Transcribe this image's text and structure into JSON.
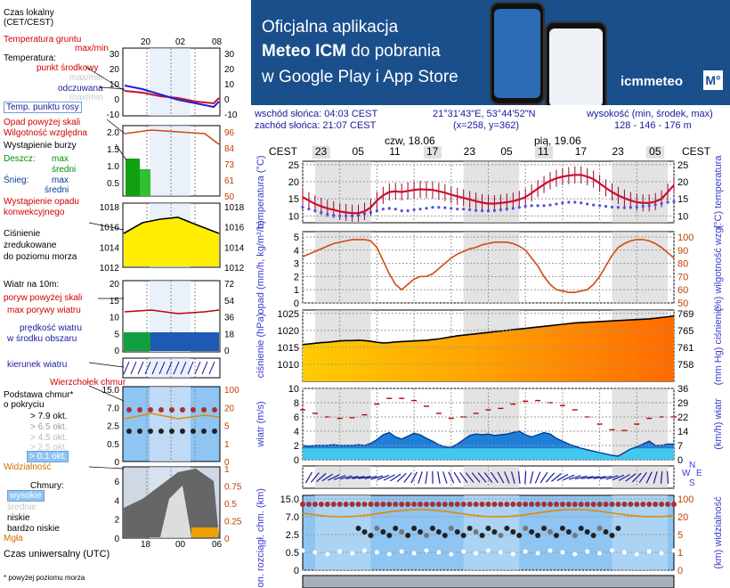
{
  "banner": {
    "line1": "Oficjalna aplikacja",
    "line2_bold": "Meteo ICM",
    "line2_rest": " do pobrania",
    "line3": "w Google Play i App Store",
    "logo": "icmmeteo",
    "logo_box": "M°"
  },
  "info": {
    "sunrise": "wschód słońca: 04:03 CEST",
    "sunset": "zachód słońca: 21:07 CEST",
    "coords": "21°31'43\"E, 53°44'52\"N",
    "grid": "(x=258, y=362)",
    "elev_label": "wysokość (min, środek, max)",
    "elev_values": "128 - 146 - 176 m"
  },
  "legend": {
    "time_local": "Czas lokalny",
    "time_local2": "(CET/CEST)",
    "time_ticks": [
      "20",
      "02",
      "08"
    ],
    "ground_temp": "Temperatura gruntu",
    "ground_temp_sub": "max/min",
    "temperature": "Temperatura:",
    "mid_point": "punkt środkowy",
    "max_min1": "max/min",
    "feels": "odczuwana",
    "max_min2": "max/min",
    "dew": "Temp. punktu rosy",
    "temp_ticks_left": [
      "30",
      "20",
      "10",
      "0",
      "-10"
    ],
    "temp_ticks_right": [
      "30",
      "20",
      "10",
      "0",
      "-10"
    ],
    "precip_above": "Opad powyżej skali",
    "humidity": "Wilgotność względna",
    "storm": "Wystąpienie burzy",
    "rain": "Deszcz:",
    "rain_max": "max",
    "rain_mid": "średni",
    "snow": "Śnieg:",
    "snow_max": "max",
    "snow_mid": "średni",
    "precip_occ": "Wystąpienie opadu",
    "precip_occ2": "konwekcyjnego",
    "precip_ticks": [
      "2.0",
      "1.5",
      "1.0",
      "0.5"
    ],
    "hum_ticks": [
      "96",
      "84",
      "73",
      "61",
      "50"
    ],
    "pressure1": "Ciśnienie",
    "pressure2": "zredukowane",
    "pressure3": "do poziomu morza",
    "press_ticks": [
      "1018",
      "1016",
      "1014",
      "1012"
    ],
    "wind_title": "Wiatr na 10m:",
    "gust_above": "poryw powyżej skali",
    "gust_max": "max porywy wiatru",
    "wind_mean": "prędkość wiatru",
    "wind_mean2": "w środku obszaru",
    "wind_ticks_left": [
      "20",
      "15",
      "10",
      "5",
      "0"
    ],
    "wind_ticks_right": [
      "72",
      "54",
      "36",
      "18",
      "0"
    ],
    "wind_dir": "kierunek wiatru",
    "cloud_top": "Wierzchołek chmur",
    "cloud_base": "Podstawa chmur*",
    "cloud_base2": "o pokryciu",
    "okt1": "> 7.9 okt.",
    "okt2": "> 6.5 okt.",
    "okt3": "> 4.5 okt.",
    "okt4": "> 2.5 okt.",
    "okt5": "> 0.1 okt.",
    "visibility": "Widzialność",
    "cb_ticks_left": [
      "15.0",
      "7.0",
      "2.5",
      "0.5",
      "0"
    ],
    "cb_ticks_right": [
      "100",
      "20",
      "5",
      "1",
      "0"
    ],
    "clouds": "Chmury:",
    "high": "wysokie",
    "mid": "średnie",
    "low": "niskie",
    "very_low": "bardzo niskie",
    "fog": "Mgła",
    "cl_ticks_left": [
      "6",
      "4",
      "2",
      "0"
    ],
    "cl_ticks_right": [
      "1",
      "0.75",
      "0.5",
      "0.25",
      "0"
    ],
    "utc": "Czas uniwersalny (UTC)",
    "utc_ticks": [
      "18",
      "00",
      "06"
    ],
    "footnote": "* powyżej poziomu morza"
  },
  "chart_data": {
    "type": "line",
    "days": [
      "czw, 18.06",
      "pią, 19.06"
    ],
    "hour_ticks": [
      "23",
      "05",
      "11",
      "17",
      "23",
      "05",
      "11",
      "17",
      "23",
      "05"
    ],
    "tz_label": "CEST",
    "hours": [
      20,
      21,
      22,
      23,
      0,
      1,
      2,
      3,
      4,
      5,
      6,
      7,
      8,
      9,
      10,
      11,
      12,
      13,
      14,
      15,
      16,
      17,
      18,
      19,
      20,
      21,
      22,
      23,
      0,
      1,
      2,
      3,
      4,
      5,
      6,
      7,
      8,
      9,
      10,
      11,
      12,
      13,
      14,
      15,
      16,
      17,
      18,
      19,
      20,
      21,
      22,
      23,
      0,
      1,
      2,
      3,
      4,
      5,
      6,
      7,
      8
    ],
    "panels": [
      {
        "name": "temperatura",
        "ylabel_left": "temperatura (°C)",
        "ylabel_right": "(°C) temperatura",
        "ylim": [
          8,
          25
        ],
        "ticks": [
          "25",
          "20",
          "15",
          "10"
        ],
        "series": [
          {
            "name": "temperatura",
            "values": [
              15.5,
              14.5,
              13.5,
              12.8,
              12.2,
              11.8,
              11.3,
              11.0,
              10.8,
              10.8,
              11.3,
              12.5,
              14.5,
              16.0,
              17.0,
              17.2,
              17.0,
              17.3,
              17.6,
              17.8,
              17.7,
              17.6,
              17.2,
              16.8,
              16.2,
              15.7,
              15.3,
              14.8,
              14.3,
              13.9,
              13.6,
              13.6,
              13.8,
              14.0,
              14.3,
              14.8,
              15.5,
              16.7,
              18.0,
              19.2,
              20.3,
              21.0,
              21.5,
              21.8,
              22.0,
              22.0,
              21.5,
              20.8,
              19.5,
              18.2,
              17.0,
              16.0,
              15.2,
              14.5,
              14.0,
              13.8,
              13.8,
              14.2,
              15.0,
              17.0,
              19.0
            ]
          },
          {
            "name": "punkt rosy",
            "values": [
              12.5,
              12.0,
              11.5,
              11.0,
              10.5,
              10.2,
              10.0,
              10.0,
              10.0,
              10.2,
              10.6,
              11.0,
              11.5,
              12.0,
              12.2,
              12.0,
              11.5,
              11.5,
              11.8,
              12.0,
              12.2,
              12.5,
              12.5,
              12.4,
              12.2,
              12.0,
              12.0,
              11.8,
              11.6,
              11.5,
              11.5,
              11.6,
              11.8,
              12.0,
              12.2,
              12.5,
              12.8,
              13.0,
              13.0,
              13.0,
              13.2,
              13.5,
              13.8,
              14.0,
              14.0,
              13.8,
              13.5,
              13.2,
              13.0,
              12.8,
              12.6,
              12.5,
              12.4,
              12.5,
              12.6,
              12.8,
              13.0,
              13.3,
              13.6,
              14.0,
              14.2
            ]
          }
        ]
      },
      {
        "name": "opad",
        "ylabel_left": "opad (mm/h, kg/m²/h)",
        "ylabel_right": "(%) wilgotność wzgl.",
        "ylim": [
          0,
          5
        ],
        "ticks_left": [
          "5",
          "4",
          "3",
          "2",
          "1",
          "0"
        ],
        "ticks_right": [
          "100",
          "90",
          "80",
          "70",
          "60",
          "50"
        ],
        "series": [
          {
            "name": "wilgotność",
            "values": [
              83,
              85,
              87,
              89,
              91,
              93,
              94,
              95,
              96,
              96,
              96,
              95,
              90,
              80,
              70,
              62,
              58,
              62,
              66,
              68,
              68,
              70,
              74,
              78,
              82,
              85,
              87,
              89,
              90,
              92,
              93,
              94,
              94,
              94,
              93,
              91,
              88,
              82,
              76,
              68,
              62,
              58,
              57,
              56,
              56,
              57,
              58,
              62,
              68,
              76,
              84,
              90,
              93,
              95,
              96,
              96,
              95,
              93,
              90,
              86,
              82
            ]
          }
        ]
      },
      {
        "name": "ciśnienie",
        "ylabel_left": "ciśnienie (hPa)",
        "ylabel_right": "(mm Hg) ciśnienie",
        "ylim": [
          1005,
          1025
        ],
        "ticks_left": [
          "1025",
          "1020",
          "1015",
          "1010"
        ],
        "ticks_right": [
          "769",
          "765",
          "761",
          "758"
        ],
        "series": [
          {
            "name": "ciśnienie",
            "values": [
              1015.8,
              1016.0,
              1016.2,
              1016.4,
              1016.5,
              1016.7,
              1016.9,
              1017.0,
              1017.0,
              1017.1,
              1017.0,
              1016.8,
              1016.5,
              1016.3,
              1016.4,
              1016.6,
              1016.7,
              1016.8,
              1016.9,
              1017.0,
              1017.1,
              1017.3,
              1017.5,
              1017.8,
              1018.1,
              1018.4,
              1018.6,
              1018.8,
              1019.0,
              1019.2,
              1019.4,
              1019.6,
              1019.8,
              1020.0,
              1020.2,
              1020.4,
              1020.6,
              1020.8,
              1021.0,
              1021.2,
              1021.4,
              1021.6,
              1021.8,
              1022.0,
              1022.2,
              1022.3,
              1022.4,
              1022.5,
              1022.6,
              1022.7,
              1022.8,
              1022.9,
              1023.0,
              1023.1,
              1023.2,
              1023.3,
              1023.4,
              1023.6,
              1023.8,
              1024.0,
              1024.3
            ]
          }
        ]
      },
      {
        "name": "wiatr",
        "ylabel_left": "wiatr (m/s)",
        "ylabel_right": "(km/h) wiatr",
        "ylim": [
          0,
          10
        ],
        "ticks_left": [
          "10",
          "8",
          "6",
          "4",
          "2",
          "0"
        ],
        "ticks_right": [
          "36",
          "29",
          "22",
          "14",
          "7",
          "0"
        ],
        "series": [
          {
            "name": "prędkość wiatru",
            "values": [
              2.0,
              1.9,
              2.0,
              2.0,
              2.0,
              2.1,
              2.0,
              2.0,
              2.0,
              2.1,
              2.0,
              2.3,
              2.8,
              3.5,
              3.8,
              3.2,
              2.9,
              3.3,
              3.7,
              3.5,
              3.0,
              2.6,
              2.1,
              1.8,
              1.7,
              2.2,
              2.8,
              3.4,
              3.6,
              3.5,
              3.6,
              3.4,
              3.5,
              3.6,
              3.8,
              4.0,
              3.5,
              3.2,
              3.5,
              3.8,
              3.6,
              3.0,
              2.6,
              2.2,
              1.9,
              1.6,
              1.4,
              1.2,
              1.0,
              0.8,
              0.6,
              0.5,
              1.0,
              1.5,
              1.8,
              2.2,
              2.6,
              2.0,
              2.0,
              2.2,
              2.2
            ]
          },
          {
            "name": "max porywy",
            "values": [
              7.0,
              6.8,
              6.5,
              6.3,
              6.0,
              6.0,
              5.8,
              5.8,
              5.9,
              6.0,
              6.3,
              7.0,
              7.8,
              8.3,
              8.6,
              8.7,
              8.6,
              8.5,
              8.3,
              8.0,
              7.5,
              7.0,
              6.5,
              6.0,
              5.8,
              5.8,
              6.0,
              6.2,
              6.5,
              6.8,
              7.0,
              7.0,
              7.2,
              7.5,
              7.8,
              8.0,
              8.2,
              8.3,
              8.3,
              8.2,
              8.0,
              7.8,
              7.6,
              7.3,
              7.0,
              6.5,
              6.0,
              5.5,
              5.0,
              4.5,
              4.2,
              4.0,
              4.1,
              4.5,
              5.0,
              5.5,
              5.8,
              6.0,
              6.0,
              6.0,
              6.0
            ]
          }
        ]
      }
    ],
    "rows": [
      {
        "name": "kierunek wiatru",
        "ylabel_right": "WE SN"
      },
      {
        "name": "chmury",
        "ylabel_left": "pion. rozciągł. chm. (km)",
        "ylabel_right": "(km) widzialność",
        "ticks_left": [
          "15.0",
          "7.0",
          "2.5",
          "0.5",
          "0"
        ],
        "ticks_right": [
          "100",
          "20",
          "5",
          "1",
          "0"
        ]
      }
    ]
  },
  "colors": {
    "banner": "#1a4f8c",
    "temp": "#c8102e",
    "dew": "#3a3ad0",
    "humidity": "#d04a10",
    "pressure_fill": "#ff9a00",
    "wind_fill": "#1f8fe0",
    "gust": "#c00000",
    "night": "#d0d0d0",
    "sky": "#8ec5f2"
  }
}
